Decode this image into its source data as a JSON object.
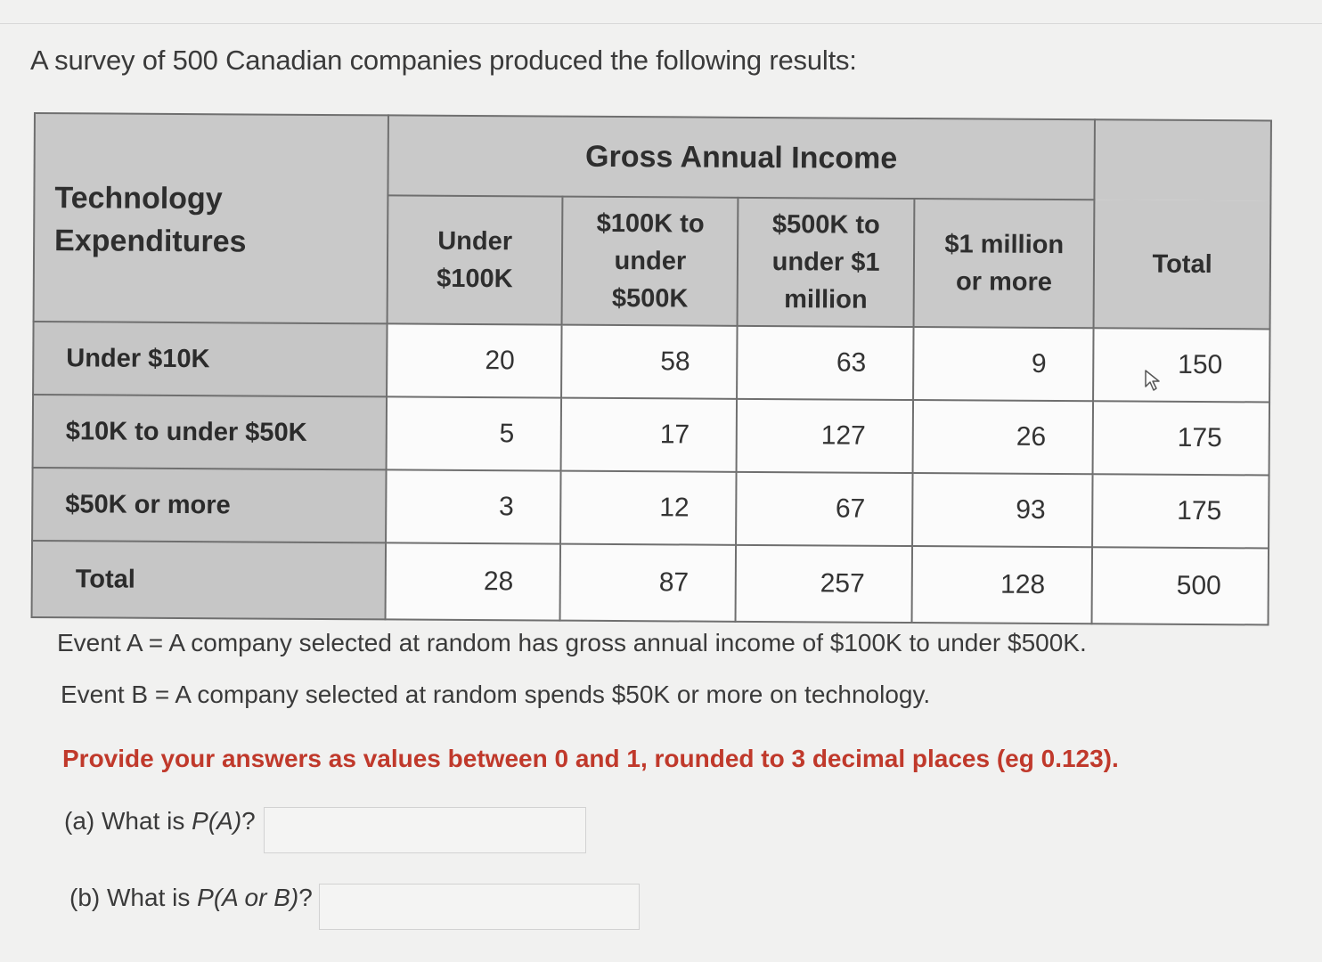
{
  "intro": "A survey of 500 Canadian companies produced the following results:",
  "table": {
    "row_header_title_line1": "Technology",
    "row_header_title_line2": "Expenditures",
    "group_header": "Gross Annual Income",
    "columns": [
      {
        "line1": "Under",
        "line2": "$100K",
        "line3": ""
      },
      {
        "line1": "$100K to",
        "line2": "under",
        "line3": "$500K"
      },
      {
        "line1": "$500K to",
        "line2": "under $1",
        "line3": "million"
      },
      {
        "line1": "$1 million",
        "line2": "or more",
        "line3": ""
      },
      {
        "line1": "Total",
        "line2": "",
        "line3": ""
      }
    ],
    "rows": [
      {
        "label": "Under $10K",
        "values": [
          "20",
          "58",
          "63",
          "9",
          "150"
        ]
      },
      {
        "label": "$10K to under $50K",
        "values": [
          "5",
          "17",
          "127",
          "26",
          "175"
        ]
      },
      {
        "label": "$50K or more",
        "values": [
          "3",
          "12",
          "67",
          "93",
          "175"
        ]
      }
    ],
    "total_row": {
      "label": "Total",
      "values": [
        "28",
        "87",
        "257",
        "128",
        "500"
      ]
    }
  },
  "event_a": "Event A = A company selected at random has gross annual income of $100K to under $500K.",
  "event_b": "Event B = A company selected at random spends $50K or more on technology.",
  "instructions": "Provide your answers as values between 0 and 1, rounded to 3 decimal places (eg 0.123).",
  "questions": [
    {
      "prefix": "(a) What is ",
      "expr": "P(A)",
      "suffix": "?",
      "value": ""
    },
    {
      "prefix": "(b) What is ",
      "expr": "P(A or B)",
      "suffix": "?",
      "value": ""
    }
  ],
  "icons": {
    "cursor": "mouse-pointer-icon"
  },
  "colors": {
    "instruction_red": "#c0392b",
    "header_gray": "#c9c9c9"
  }
}
